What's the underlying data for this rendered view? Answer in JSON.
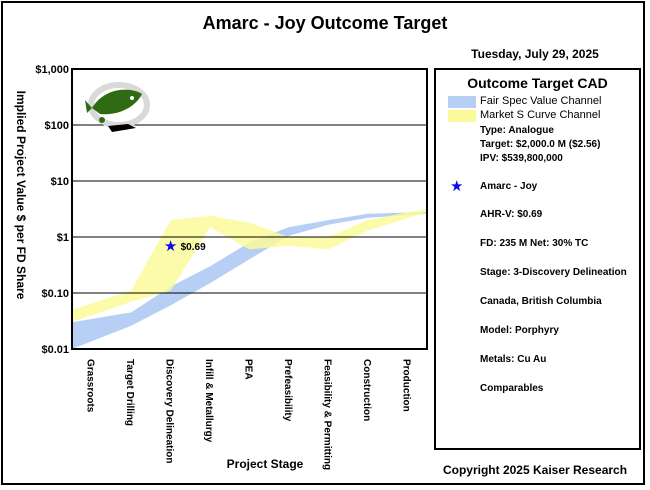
{
  "title": "Amarc - Joy Outcome Target",
  "date": "Tuesday, July 29, 2025",
  "copyright": "Copyright 2025 Kaiser Research",
  "chart_data": {
    "type": "area",
    "title": "Amarc - Joy Outcome Target",
    "xlabel": "Project Stage",
    "ylabel": "Implied Project Value $ per FD Share",
    "y_scale": "log",
    "ylim": [
      0.01,
      1000
    ],
    "y_ticks": [
      "$0.01",
      "$0.10",
      "$1",
      "$10",
      "$100",
      "$1,000"
    ],
    "y_tick_values": [
      0.01,
      0.1,
      1,
      10,
      100,
      1000
    ],
    "grid": "horizontal",
    "categories": [
      "Grassroots",
      "Target Drilling",
      "Discovery Delineation",
      "Infill & Metallurgy",
      "PEA",
      "Prefeasibility",
      "Feasibility & Permitting",
      "Construction",
      "Production"
    ],
    "series": [
      {
        "name": "Fair Spec Value Channel",
        "color": "#b8cff5",
        "low": [
          0.01,
          0.026,
          0.06,
          0.15,
          0.4,
          1.05,
          1.65,
          2.2,
          2.6
        ],
        "high": [
          0.03,
          0.045,
          0.13,
          0.3,
          0.8,
          1.5,
          2.0,
          2.6,
          2.8
        ]
      },
      {
        "name": "Market S Curve Channel",
        "color": "#fafa9a",
        "low": [
          0.03,
          0.07,
          0.11,
          1.5,
          0.6,
          0.7,
          0.6,
          1.3,
          2.8
        ],
        "high": [
          0.05,
          0.11,
          2.0,
          2.4,
          1.8,
          1.0,
          1.0,
          2.0,
          3.2
        ]
      }
    ],
    "markers": [
      {
        "name": "Amarc - Joy",
        "label": "$0.69",
        "category": "Discovery Delineation",
        "value": 0.69,
        "color": "#0a0af0"
      }
    ]
  },
  "legend": {
    "title": "Outcome Target CAD",
    "items": [
      "Fair Spec Value Channel",
      "Market S Curve Channel"
    ],
    "type": "Type: Analogue",
    "target": "Target: $2,000.0 M ($2.56)",
    "ipv": "IPV: $539,800,000",
    "company": "Amarc - Joy",
    "ahrv": "AHR-V: $0.69",
    "fd": "FD: 235 M Net: 30% TC",
    "stage": "Stage: 3-Discovery Delineation",
    "location": "Canada, British Columbia",
    "model": "Model: Porphyry",
    "metals": "Metals: Cu Au",
    "comparables": "Comparables"
  },
  "colors": {
    "fair": "#b8cff5",
    "market": "#fafa9a",
    "star": "#0a0af0",
    "logo_green": "#2e6b12"
  },
  "icons": [
    "fish-logo-icon",
    "star-icon"
  ]
}
